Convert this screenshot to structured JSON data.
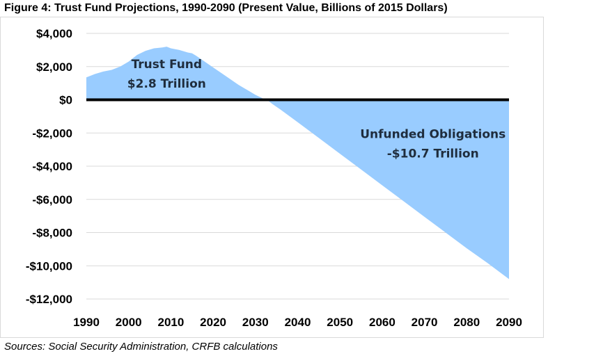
{
  "figure": {
    "title": "Figure 4: Trust Fund Projections, 1990-2090 (Present Value, Billions of 2015 Dollars)",
    "source": "Sources: Social Security Administration, CRFB calculations"
  },
  "chart_data": {
    "type": "area",
    "title": "Figure 4: Trust Fund Projections, 1990-2090 (Present Value, Billions of 2015 Dollars)",
    "xlabel": "",
    "ylabel": "",
    "xlim": [
      1990,
      2090
    ],
    "ylim": [
      -12000,
      4000
    ],
    "x_ticks": [
      1990,
      2000,
      2010,
      2020,
      2030,
      2040,
      2050,
      2060,
      2070,
      2080,
      2090
    ],
    "x_tick_labels": [
      "1990",
      "2000",
      "2010",
      "2020",
      "2030",
      "2040",
      "2050",
      "2060",
      "2070",
      "2080",
      "2090"
    ],
    "y_ticks": [
      4000,
      2000,
      0,
      -2000,
      -4000,
      -6000,
      -8000,
      -10000,
      -12000
    ],
    "y_tick_labels": [
      "$4,000",
      "$2,000",
      "$0",
      "-$2,000",
      "-$4,000",
      "-$6,000",
      "-$8,000",
      "-$10,000",
      "-$12,000"
    ],
    "grid": true,
    "fill_color": "#99ccff",
    "zero_line_color": "#000000",
    "series": [
      {
        "x": [
          1990,
          1992,
          1994,
          1996,
          1998,
          2000,
          2002,
          2004,
          2006,
          2008,
          2009,
          2010,
          2012,
          2014,
          2015,
          2016,
          2018,
          2020,
          2022,
          2024,
          2026,
          2028,
          2030,
          2032,
          2033,
          2034,
          2036,
          2040,
          2045,
          2050,
          2055,
          2060,
          2065,
          2070,
          2075,
          2080,
          2085,
          2090
        ],
        "values": [
          1350,
          1550,
          1700,
          1800,
          2000,
          2300,
          2700,
          2950,
          3100,
          3150,
          3200,
          3100,
          3000,
          2850,
          2800,
          2650,
          2300,
          1950,
          1600,
          1250,
          900,
          600,
          300,
          50,
          -50,
          -250,
          -600,
          -1350,
          -2300,
          -3250,
          -4200,
          -5150,
          -6100,
          -7050,
          -8000,
          -8950,
          -9850,
          -10800
        ]
      }
    ],
    "annotations": [
      {
        "lines": [
          "Trust Fund",
          "$2.8 Trillion"
        ],
        "x": 2009,
        "y": 1900,
        "anchor": "middle"
      },
      {
        "lines": [
          "Unfunded Obligations",
          "-$10.7 Trillion"
        ],
        "x": 2072,
        "y": -2300,
        "anchor": "middle"
      }
    ]
  }
}
